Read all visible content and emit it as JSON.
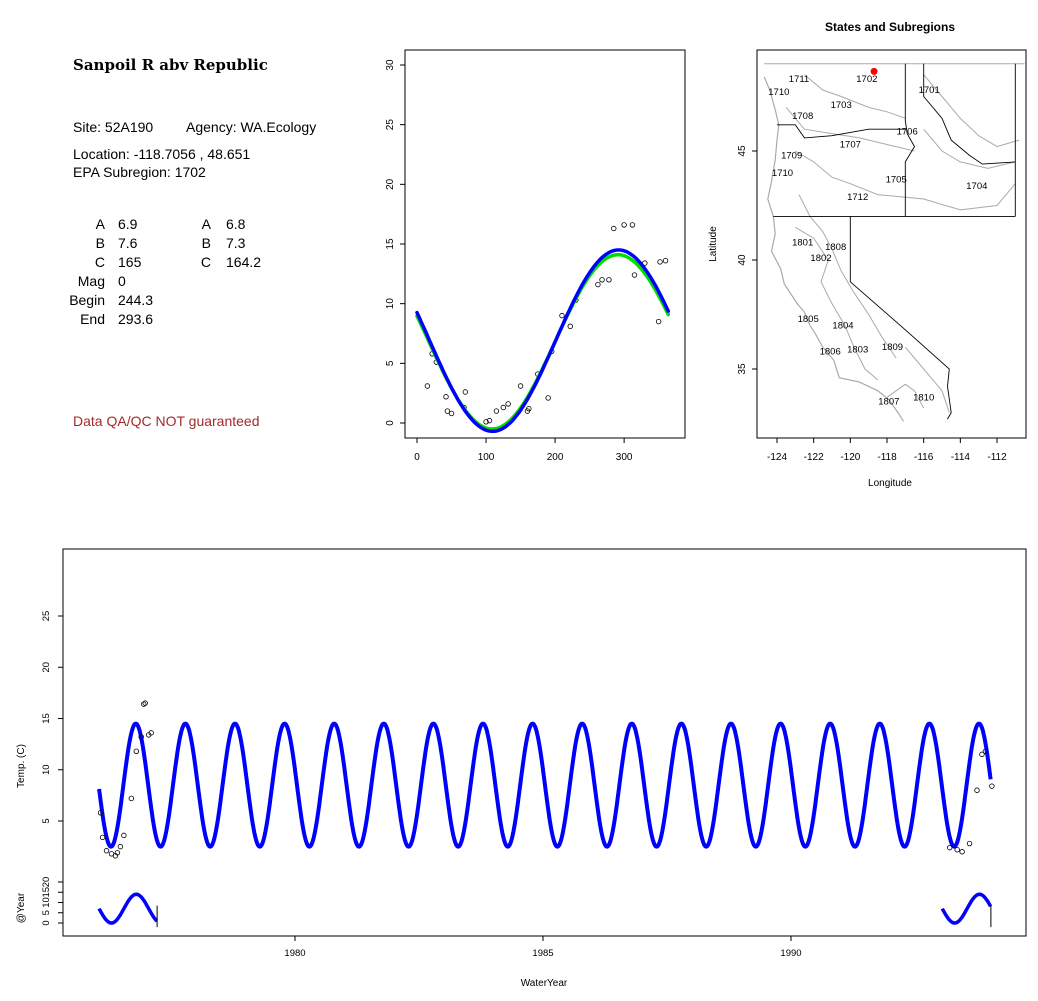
{
  "info": {
    "title": "Sanpoil R abv Republic",
    "site": "Site: 52A190",
    "agency": "Agency: WA.Ecology",
    "location": "Location: -118.7056 , 48.651",
    "subregion": "EPA Subregion: 1702",
    "params_left": [
      {
        "label": "A",
        "value": "6.9"
      },
      {
        "label": "B",
        "value": "7.6"
      },
      {
        "label": "C",
        "value": "165"
      },
      {
        "label": "Mag",
        "value": "0"
      },
      {
        "label": "Begin",
        "value": "244.3"
      },
      {
        "label": "End",
        "value": "293.6"
      }
    ],
    "params_right": [
      {
        "label": "A",
        "value": "6.8"
      },
      {
        "label": "B",
        "value": "7.3"
      },
      {
        "label": "C",
        "value": "164.2"
      }
    ],
    "qa_note": "Data QA/QC NOT guaranteed"
  },
  "colors": {
    "fit_blue": "#0000ff",
    "fit_green": "#00dd00",
    "site_marker": "#ff0000",
    "qa_text": "#a52a2a",
    "boundary": "#aaaaaa"
  },
  "chart_data": [
    {
      "type": "scatter",
      "title": "",
      "xlabel": "",
      "ylabel": "",
      "xlim": [
        0,
        365
      ],
      "ylim": [
        0,
        30
      ],
      "xticks": [
        0,
        100,
        200,
        300
      ],
      "yticks": [
        0,
        5,
        10,
        15,
        20,
        25,
        30
      ],
      "points": [
        [
          15,
          3.1
        ],
        [
          22,
          5.8
        ],
        [
          28,
          5.1
        ],
        [
          42,
          2.2
        ],
        [
          44,
          1.0
        ],
        [
          50,
          0.8
        ],
        [
          68,
          1.3
        ],
        [
          70,
          2.6
        ],
        [
          100,
          0.1
        ],
        [
          105,
          0.2
        ],
        [
          115,
          1.0
        ],
        [
          125,
          1.3
        ],
        [
          132,
          1.6
        ],
        [
          150,
          3.1
        ],
        [
          160,
          1.0
        ],
        [
          162,
          1.2
        ],
        [
          175,
          4.1
        ],
        [
          190,
          2.1
        ],
        [
          195,
          6.0
        ],
        [
          210,
          9.0
        ],
        [
          222,
          8.1
        ],
        [
          230,
          10.3
        ],
        [
          262,
          11.6
        ],
        [
          268,
          12.0
        ],
        [
          278,
          12.0
        ],
        [
          285,
          16.3
        ],
        [
          300,
          16.6
        ],
        [
          312,
          16.6
        ],
        [
          315,
          12.4
        ],
        [
          330,
          13.4
        ],
        [
          350,
          8.5
        ],
        [
          352,
          13.5
        ],
        [
          360,
          13.6
        ]
      ],
      "fit_blue": {
        "mean": 6.9,
        "amplitude": 7.6,
        "phase": 165,
        "day_range": [
          0,
          365
        ]
      },
      "fit_green": {
        "mean": 6.8,
        "amplitude": 7.3,
        "phase": 164.2,
        "day_range": [
          0,
          365
        ]
      }
    },
    {
      "type": "map",
      "title": "States and Subregions",
      "xlabel": "Longitude",
      "ylabel": "Latitude",
      "xlim": [
        -125.2,
        -110.8
      ],
      "ylim": [
        32.5,
        49.5
      ],
      "xticks": [
        -124,
        -122,
        -120,
        -118,
        -116,
        -114,
        -112
      ],
      "yticks": [
        35,
        40,
        45
      ],
      "site": {
        "lon": -118.7056,
        "lat": 48.651
      },
      "subregions": [
        {
          "label": "1711",
          "lon": -122.8,
          "lat": 48.3
        },
        {
          "label": "1702",
          "lon": -119.1,
          "lat": 48.3
        },
        {
          "label": "1701",
          "lon": -115.7,
          "lat": 47.8
        },
        {
          "label": "1710",
          "lon": -123.9,
          "lat": 47.7
        },
        {
          "label": "1703",
          "lon": -120.5,
          "lat": 47.1
        },
        {
          "label": "1708",
          "lon": -122.6,
          "lat": 46.6
        },
        {
          "label": "1706",
          "lon": -116.9,
          "lat": 45.9
        },
        {
          "label": "1707",
          "lon": -120.0,
          "lat": 45.3
        },
        {
          "label": "1709",
          "lon": -123.2,
          "lat": 44.8
        },
        {
          "label": "1710",
          "lon": -123.7,
          "lat": 44.0
        },
        {
          "label": "1705",
          "lon": -117.5,
          "lat": 43.7
        },
        {
          "label": "1704",
          "lon": -113.1,
          "lat": 43.4
        },
        {
          "label": "1712",
          "lon": -119.6,
          "lat": 42.9
        },
        {
          "label": "1801",
          "lon": -122.6,
          "lat": 40.8
        },
        {
          "label": "1808",
          "lon": -120.8,
          "lat": 40.6
        },
        {
          "label": "1802",
          "lon": -121.6,
          "lat": 40.1
        },
        {
          "label": "1805",
          "lon": -122.3,
          "lat": 37.3
        },
        {
          "label": "1804",
          "lon": -120.4,
          "lat": 37.0
        },
        {
          "label": "1806",
          "lon": -121.1,
          "lat": 35.8
        },
        {
          "label": "1803",
          "lon": -119.6,
          "lat": 35.9
        },
        {
          "label": "1809",
          "lon": -117.7,
          "lat": 36.0
        },
        {
          "label": "1810",
          "lon": -116.0,
          "lat": 33.7
        },
        {
          "label": "1807",
          "lon": -117.9,
          "lat": 33.5
        }
      ]
    },
    {
      "type": "line",
      "title": "",
      "xlabel": "WaterYear",
      "ylabel": "Temp. (C)",
      "xlim": [
        1975.2,
        1995.2
      ],
      "ylim": [
        0,
        30
      ],
      "xticks": [
        1980,
        1985,
        1990
      ],
      "yticks": [
        5,
        10,
        15,
        20,
        25
      ],
      "model": {
        "mean": 8.5,
        "amplitude": 6.0,
        "peak_year_fraction": 0.79,
        "range": [
          1976.05,
          1994.03
        ]
      },
      "observed_segments": [
        [
          1976.05,
          1977.22
        ],
        [
          1993.05,
          1994.03
        ]
      ],
      "points": [
        [
          1976.08,
          5.8
        ],
        [
          1976.12,
          3.4
        ],
        [
          1976.2,
          2.1
        ],
        [
          1976.3,
          1.8
        ],
        [
          1976.38,
          1.6
        ],
        [
          1976.42,
          1.9
        ],
        [
          1976.48,
          2.5
        ],
        [
          1976.55,
          3.6
        ],
        [
          1976.7,
          7.2
        ],
        [
          1976.8,
          11.8
        ],
        [
          1976.9,
          13.2
        ],
        [
          1976.95,
          16.4
        ],
        [
          1976.98,
          16.5
        ],
        [
          1977.05,
          13.4
        ],
        [
          1977.1,
          13.6
        ],
        [
          1993.2,
          2.4
        ],
        [
          1993.35,
          2.2
        ],
        [
          1993.45,
          2.0
        ],
        [
          1993.6,
          2.8
        ],
        [
          1993.75,
          8.0
        ],
        [
          1993.85,
          11.5
        ],
        [
          1993.92,
          11.8
        ],
        [
          1994.05,
          8.4
        ]
      ]
    },
    {
      "type": "line",
      "title": "",
      "xlabel": "",
      "ylabel": "@Year",
      "xlim": [
        1975.2,
        1995.2
      ],
      "ylim": [
        -3,
        25
      ],
      "yticks": [
        0,
        5,
        10,
        15,
        20
      ],
      "segments": [
        [
          1976.05,
          1977.22
        ],
        [
          1993.05,
          1994.03
        ]
      ]
    }
  ]
}
